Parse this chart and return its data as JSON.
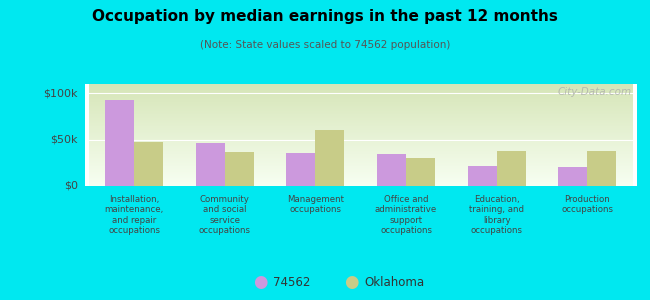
{
  "title": "Occupation by median earnings in the past 12 months",
  "subtitle": "(Note: State values scaled to 74562 population)",
  "categories": [
    "Installation,\nmaintenance,\nand repair\noccupations",
    "Community\nand social\nservice\noccupations",
    "Management\noccupations",
    "Office and\nadministrative\nsupport\noccupations",
    "Education,\ntraining, and\nlibrary\noccupations",
    "Production\noccupations"
  ],
  "values_74562": [
    93000,
    46000,
    36000,
    35000,
    22000,
    21000
  ],
  "values_oklahoma": [
    47000,
    37000,
    60000,
    30000,
    38000,
    38000
  ],
  "color_74562": "#cc99dd",
  "color_oklahoma": "#c8cc88",
  "background_outer": "#00e8f0",
  "background_plot_top": "#f8fff8",
  "background_plot_bottom": "#d8eebb",
  "ylim": [
    0,
    110000
  ],
  "yticks": [
    0,
    50000,
    100000
  ],
  "ytick_labels": [
    "$0",
    "$50k",
    "$100k"
  ],
  "legend_label_74562": "74562",
  "legend_label_oklahoma": "Oklahoma",
  "watermark": "City-Data.com"
}
